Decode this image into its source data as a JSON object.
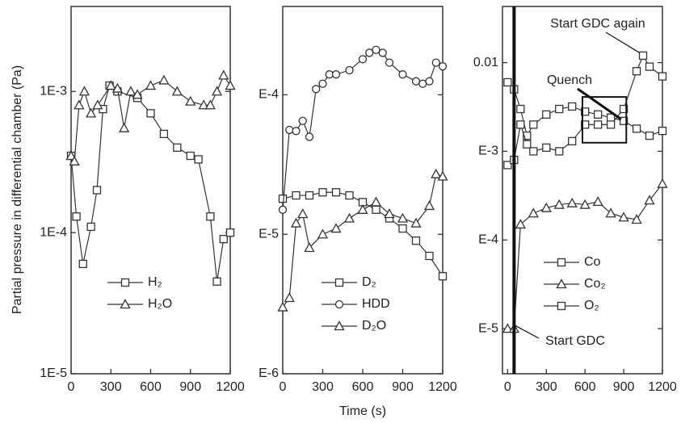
{
  "chart_data": [
    {
      "type": "line",
      "y_label": "Partial pressure in differential chamber (Pa)",
      "log_y": true,
      "xlim": [
        0,
        1200
      ],
      "xticks": [
        0,
        300,
        600,
        900,
        1200
      ],
      "ylim": [
        1e-05,
        0.004
      ],
      "yticks": [
        {
          "value": 0.001,
          "label": "1E-3"
        },
        {
          "value": 0.0001,
          "label": "1E-4"
        },
        {
          "value": 1e-05,
          "label": "1E-5"
        }
      ],
      "series": [
        {
          "name": "H₂",
          "color": "#333333",
          "marker": "square",
          "x": [
            0,
            40,
            90,
            150,
            195,
            240,
            290,
            350,
            500,
            600,
            700,
            800,
            900,
            960,
            1050,
            1100,
            1150,
            1200
          ],
          "values": [
            0.00035,
            0.00013,
            6e-05,
            0.00011,
            0.0002,
            0.00075,
            0.0011,
            0.001,
            0.0009,
            0.0007,
            0.0005,
            0.0004,
            0.00035,
            0.00033,
            0.00013,
            4.5e-05,
            9e-05,
            0.0001
          ]
        },
        {
          "name": "H₂O",
          "color": "#333333",
          "marker": "triangle",
          "x": [
            0,
            25,
            60,
            100,
            150,
            200,
            300,
            350,
            400,
            450,
            500,
            600,
            700,
            800,
            900,
            1000,
            1050,
            1100,
            1150,
            1200
          ],
          "values": [
            0.00035,
            0.00032,
            0.0008,
            0.001,
            0.0007,
            0.0008,
            0.0011,
            0.00105,
            0.00055,
            0.001,
            0.00095,
            0.0011,
            0.0012,
            0.001,
            0.00085,
            0.0008,
            0.0008,
            0.001,
            0.0013,
            0.0011
          ]
        }
      ]
    },
    {
      "type": "line",
      "x_label": "Time (s)",
      "log_y": true,
      "xlim": [
        0,
        1200
      ],
      "xticks": [
        0,
        300,
        600,
        900,
        1200
      ],
      "ylim": [
        1e-06,
        0.00043
      ],
      "yticks": [
        {
          "value": 0.0001,
          "label": "E-4"
        },
        {
          "value": 1e-05,
          "label": "E-5"
        },
        {
          "value": 1e-06,
          "label": "E-6"
        }
      ],
      "series": [
        {
          "name": "D₂",
          "color": "#333333",
          "marker": "square",
          "x": [
            0,
            100,
            200,
            300,
            400,
            500,
            600,
            700,
            800,
            900,
            1000,
            1100,
            1200
          ],
          "values": [
            1.8e-05,
            1.9e-05,
            1.9e-05,
            2e-05,
            2e-05,
            1.9e-05,
            1.7e-05,
            1.5e-05,
            1.3e-05,
            1.1e-05,
            9e-06,
            7e-06,
            5e-06
          ]
        },
        {
          "name": "HDD",
          "color": "#333333",
          "marker": "circle",
          "x": [
            0,
            50,
            100,
            150,
            200,
            250,
            300,
            350,
            400,
            500,
            600,
            650,
            700,
            750,
            800,
            900,
            1000,
            1050,
            1100,
            1150,
            1200
          ],
          "values": [
            1.5e-05,
            5.6e-05,
            5.5e-05,
            6.5e-05,
            5e-05,
            0.00011,
            0.00012,
            0.00014,
            0.00014,
            0.00015,
            0.00018,
            0.0002,
            0.00021,
            0.0002,
            0.00017,
            0.00014,
            0.000125,
            0.00012,
            0.000125,
            0.00017,
            0.00016
          ]
        },
        {
          "name": "D₂O",
          "color": "#333333",
          "marker": "triangle",
          "x": [
            0,
            50,
            100,
            150,
            200,
            300,
            400,
            500,
            600,
            700,
            800,
            900,
            1000,
            1100,
            1150,
            1200
          ],
          "values": [
            3e-06,
            3.5e-06,
            1.2e-05,
            1.4e-05,
            8e-06,
            1e-05,
            1.1e-05,
            1.3e-05,
            1.5e-05,
            1.7e-05,
            1.4e-05,
            1.3e-05,
            1.2e-05,
            1.6e-05,
            2.7e-05,
            2.6e-05
          ]
        }
      ]
    },
    {
      "type": "line",
      "log_y": true,
      "xlim": [
        -40,
        1200
      ],
      "xticks": [
        0,
        300,
        600,
        900,
        1200
      ],
      "ylim": [
        3.1e-06,
        0.043
      ],
      "yticks": [
        0.01,
        {
          "value": 0.001,
          "label": "E-3"
        },
        {
          "value": 0.0001,
          "label": "E-4"
        },
        {
          "value": 1e-05,
          "label": "E-5"
        }
      ],
      "annotations": [
        "Start GDC again",
        "Quench",
        "Start GDC"
      ],
      "series": [
        {
          "name": "Co",
          "color": "#333333",
          "marker": "square",
          "x": [
            0,
            50,
            100,
            150,
            200,
            300,
            400,
            500,
            600,
            700,
            800,
            900,
            1000,
            1100,
            1200
          ],
          "values": [
            0.006,
            0.005,
            0.003,
            0.0015,
            0.002,
            0.0026,
            0.003,
            0.0032,
            0.0028,
            0.0026,
            0.0024,
            0.0022,
            0.0018,
            0.0015,
            0.0017
          ]
        },
        {
          "name": "Co₂",
          "color": "#333333",
          "marker": "triangle",
          "x": [
            0,
            50,
            100,
            200,
            300,
            400,
            500,
            600,
            700,
            800,
            900,
            1000,
            1100,
            1200
          ],
          "values": [
            1e-05,
            1e-05,
            0.00015,
            0.0002,
            0.00023,
            0.00025,
            0.00026,
            0.00025,
            0.00027,
            0.0002,
            0.00018,
            0.00017,
            0.00028,
            0.00043
          ]
        },
        {
          "name": "O₂",
          "color": "#333333",
          "marker": "square",
          "x": [
            0,
            50,
            100,
            150,
            200,
            300,
            400,
            500,
            600,
            700,
            800,
            900,
            1000,
            1050,
            1100,
            1200
          ],
          "values": [
            0.0007,
            0.0008,
            0.002,
            0.0012,
            0.001,
            0.0011,
            0.001,
            0.0013,
            0.002,
            0.002,
            0.002,
            0.003,
            0.008,
            0.012,
            0.009,
            0.007
          ]
        }
      ]
    }
  ]
}
